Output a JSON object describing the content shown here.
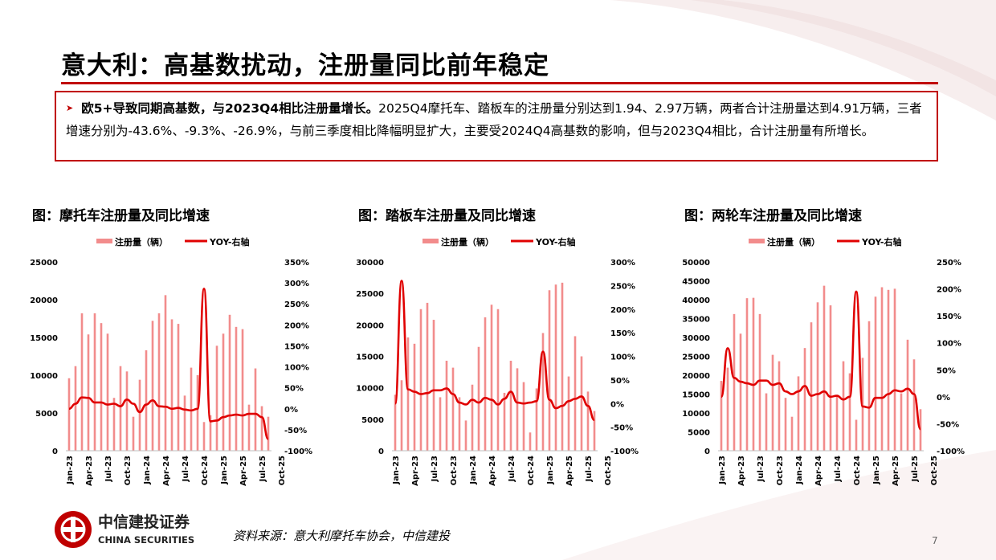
{
  "page": {
    "title": "意大利：高基数扰动，注册量同比前年稳定",
    "summary_lead": "欧5+导致同期高基数，与2023Q4相比注册量增长。",
    "summary_body": "2025Q4摩托车、踏板车的注册量分别达到1.94、2.97万辆，两者合计注册量达到4.91万辆，三者增速分别为-43.6%、-9.3%、-26.9%，与前三季度相比降幅明显扩大，主要受2024Q4高基数的影响，但与2023Q4相比，合计注册量有所增长。",
    "source": "资料来源：意大利摩托车协会，中信建投",
    "page_number": "7",
    "logo_cn": "中信建投证券",
    "logo_en": "CHINA SECURITIES",
    "accent_color": "#c00000",
    "bar_color": "#f28c8c",
    "line_color": "#e00000"
  },
  "chart_data": [
    {
      "type": "bar",
      "title": "图：摩托车注册量及同比增速",
      "legend": [
        "注册量（辆）",
        "YOY-右轴"
      ],
      "legend_position": "top",
      "x_labels": [
        "Jan-23",
        "Apr-23",
        "Jul-23",
        "Oct-23",
        "Jan-24",
        "Apr-24",
        "Jul-24",
        "Oct-24",
        "Jan-25",
        "Apr-25",
        "Jul-25",
        "Oct-25"
      ],
      "left_ticks": [
        "0",
        "5000",
        "10000",
        "15000",
        "20000",
        "25000"
      ],
      "right_ticks": [
        "-100%",
        "-50%",
        "0%",
        "50%",
        "100%",
        "150%",
        "200%",
        "250%",
        "300%",
        "350%"
      ],
      "ylim": [
        0,
        25000
      ],
      "y2lim": [
        -100,
        350
      ],
      "series": [
        {
          "name": "注册量（辆）",
          "kind": "bar",
          "values": [
            9600,
            11200,
            18200,
            15400,
            18200,
            16900,
            15500,
            7000,
            11200,
            10500,
            4500,
            9400,
            13300,
            17200,
            18200,
            20600,
            17400,
            16800,
            7300,
            11000,
            10000,
            3800,
            4700,
            13900,
            15500,
            18000,
            16400,
            16100,
            6100,
            10900,
            5900,
            4500
          ]
        },
        {
          "name": "YOY-右轴",
          "kind": "line",
          "values": [
            0,
            12,
            27,
            26,
            15,
            15,
            10,
            12,
            6,
            22,
            12,
            -8,
            10,
            20,
            6,
            5,
            0,
            2,
            -2,
            -4,
            0,
            286,
            -30,
            -28,
            -20,
            -16,
            -14,
            -16,
            -12,
            -12,
            -20,
            -72
          ]
        }
      ]
    },
    {
      "type": "bar",
      "title": "图：踏板车注册量及同比增速",
      "legend": [
        "注册量（辆）",
        "YOY-右轴"
      ],
      "legend_position": "top",
      "x_labels": [
        "Jan-23",
        "Apr-23",
        "Jul-23",
        "Oct-23",
        "Jan-24",
        "Apr-24",
        "Jul-24",
        "Oct-24",
        "Jan-25",
        "Apr-25",
        "Jul-25",
        "Oct-25"
      ],
      "left_ticks": [
        "0",
        "5000",
        "10000",
        "15000",
        "20000",
        "25000",
        "30000"
      ],
      "right_ticks": [
        "-100%",
        "-50%",
        "0%",
        "50%",
        "100%",
        "150%",
        "200%",
        "250%",
        "300%"
      ],
      "ylim": [
        0,
        30000
      ],
      "y2lim": [
        -100,
        300
      ],
      "series": [
        {
          "name": "注册量（辆）",
          "kind": "bar",
          "values": [
            8900,
            11200,
            18000,
            17000,
            22500,
            23500,
            20800,
            8500,
            14300,
            13200,
            8500,
            4800,
            10500,
            16500,
            21200,
            23200,
            22500,
            9200,
            14300,
            13100,
            10900,
            2900,
            9900,
            18700,
            25500,
            26400,
            26700,
            11800,
            18200,
            15000,
            9400,
            6300
          ]
        },
        {
          "name": "YOY-右轴",
          "kind": "line",
          "values": [
            0,
            260,
            30,
            25,
            20,
            22,
            28,
            28,
            32,
            20,
            2,
            -2,
            8,
            2,
            12,
            8,
            -2,
            10,
            25,
            2,
            0,
            2,
            5,
            110,
            8,
            -10,
            -5,
            5,
            10,
            15,
            -5,
            -35
          ]
        }
      ]
    },
    {
      "type": "bar",
      "title": "图：两轮车注册量及同比增速",
      "legend": [
        "注册量（辆）",
        "YOY-右轴"
      ],
      "legend_position": "top",
      "x_labels": [
        "Jan-23",
        "Apr-23",
        "Jul-23",
        "Oct-23",
        "Jan-24",
        "Apr-24",
        "Jul-24",
        "Oct-24",
        "Jan-25",
        "Apr-25",
        "Jul-25",
        "Oct-25"
      ],
      "left_ticks": [
        "0",
        "5000",
        "10000",
        "15000",
        "20000",
        "25000",
        "30000",
        "35000",
        "40000",
        "45000",
        "50000"
      ],
      "right_ticks": [
        "-100%",
        "-50%",
        "0%",
        "50%",
        "100%",
        "150%",
        "200%",
        "250%"
      ],
      "ylim": [
        0,
        50000
      ],
      "y2lim": [
        -100,
        250
      ],
      "series": [
        {
          "name": "注册量（辆）",
          "kind": "bar",
          "values": [
            18500,
            22000,
            36200,
            31000,
            40400,
            40500,
            36200,
            15200,
            25400,
            23700,
            14000,
            9000,
            19700,
            27200,
            34000,
            39300,
            43700,
            38500,
            14800,
            23700,
            20500,
            8200,
            24600,
            34300,
            40800,
            43300,
            42600,
            42900,
            15200,
            29400,
            24200,
            11000
          ]
        },
        {
          "name": "YOY-右轴",
          "kind": "line",
          "values": [
            0,
            90,
            35,
            28,
            25,
            22,
            30,
            30,
            22,
            25,
            10,
            5,
            10,
            20,
            2,
            5,
            10,
            0,
            2,
            -5,
            0,
            195,
            -18,
            -20,
            -2,
            -2,
            5,
            12,
            10,
            15,
            5,
            -60
          ]
        }
      ]
    }
  ]
}
